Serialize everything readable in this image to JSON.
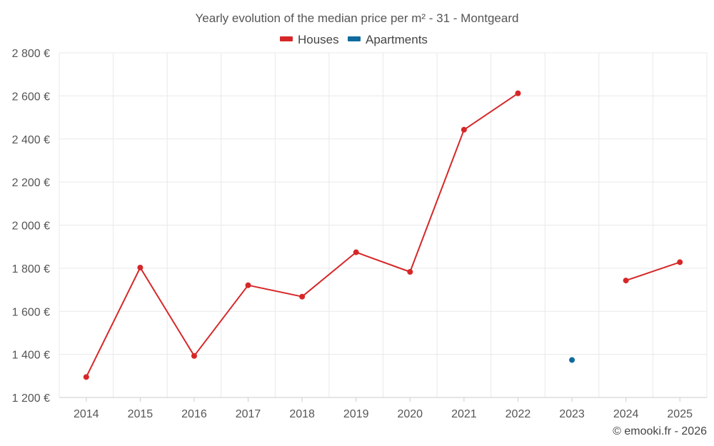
{
  "chart_data": {
    "type": "line",
    "title": "Yearly evolution of the median price per m² - 31 - Montgeard",
    "categories": [
      "2014",
      "2015",
      "2016",
      "2017",
      "2018",
      "2019",
      "2020",
      "2021",
      "2022",
      "2023",
      "2024",
      "2025"
    ],
    "ylim": [
      1200,
      2800
    ],
    "yticks": [
      1200,
      1400,
      1600,
      1800,
      2000,
      2200,
      2400,
      2600,
      2800
    ],
    "ytick_labels": [
      "1 200 €",
      "1 400 €",
      "1 600 €",
      "1 800 €",
      "2 000 €",
      "2 200 €",
      "2 400 €",
      "2 600 €",
      "2 800 €"
    ],
    "grid": true,
    "legend_position": "top-center",
    "series": [
      {
        "name": "Houses",
        "color": "#d62728",
        "values": [
          1295,
          1803,
          1393,
          1721,
          1668,
          1874,
          1783,
          2443,
          2612,
          null,
          1743,
          1828
        ]
      },
      {
        "name": "Apartments",
        "color": "#0f6b9e",
        "values": [
          null,
          null,
          null,
          null,
          null,
          null,
          null,
          null,
          null,
          1374,
          null,
          null
        ]
      }
    ]
  },
  "credit": "© emooki.fr - 2026"
}
